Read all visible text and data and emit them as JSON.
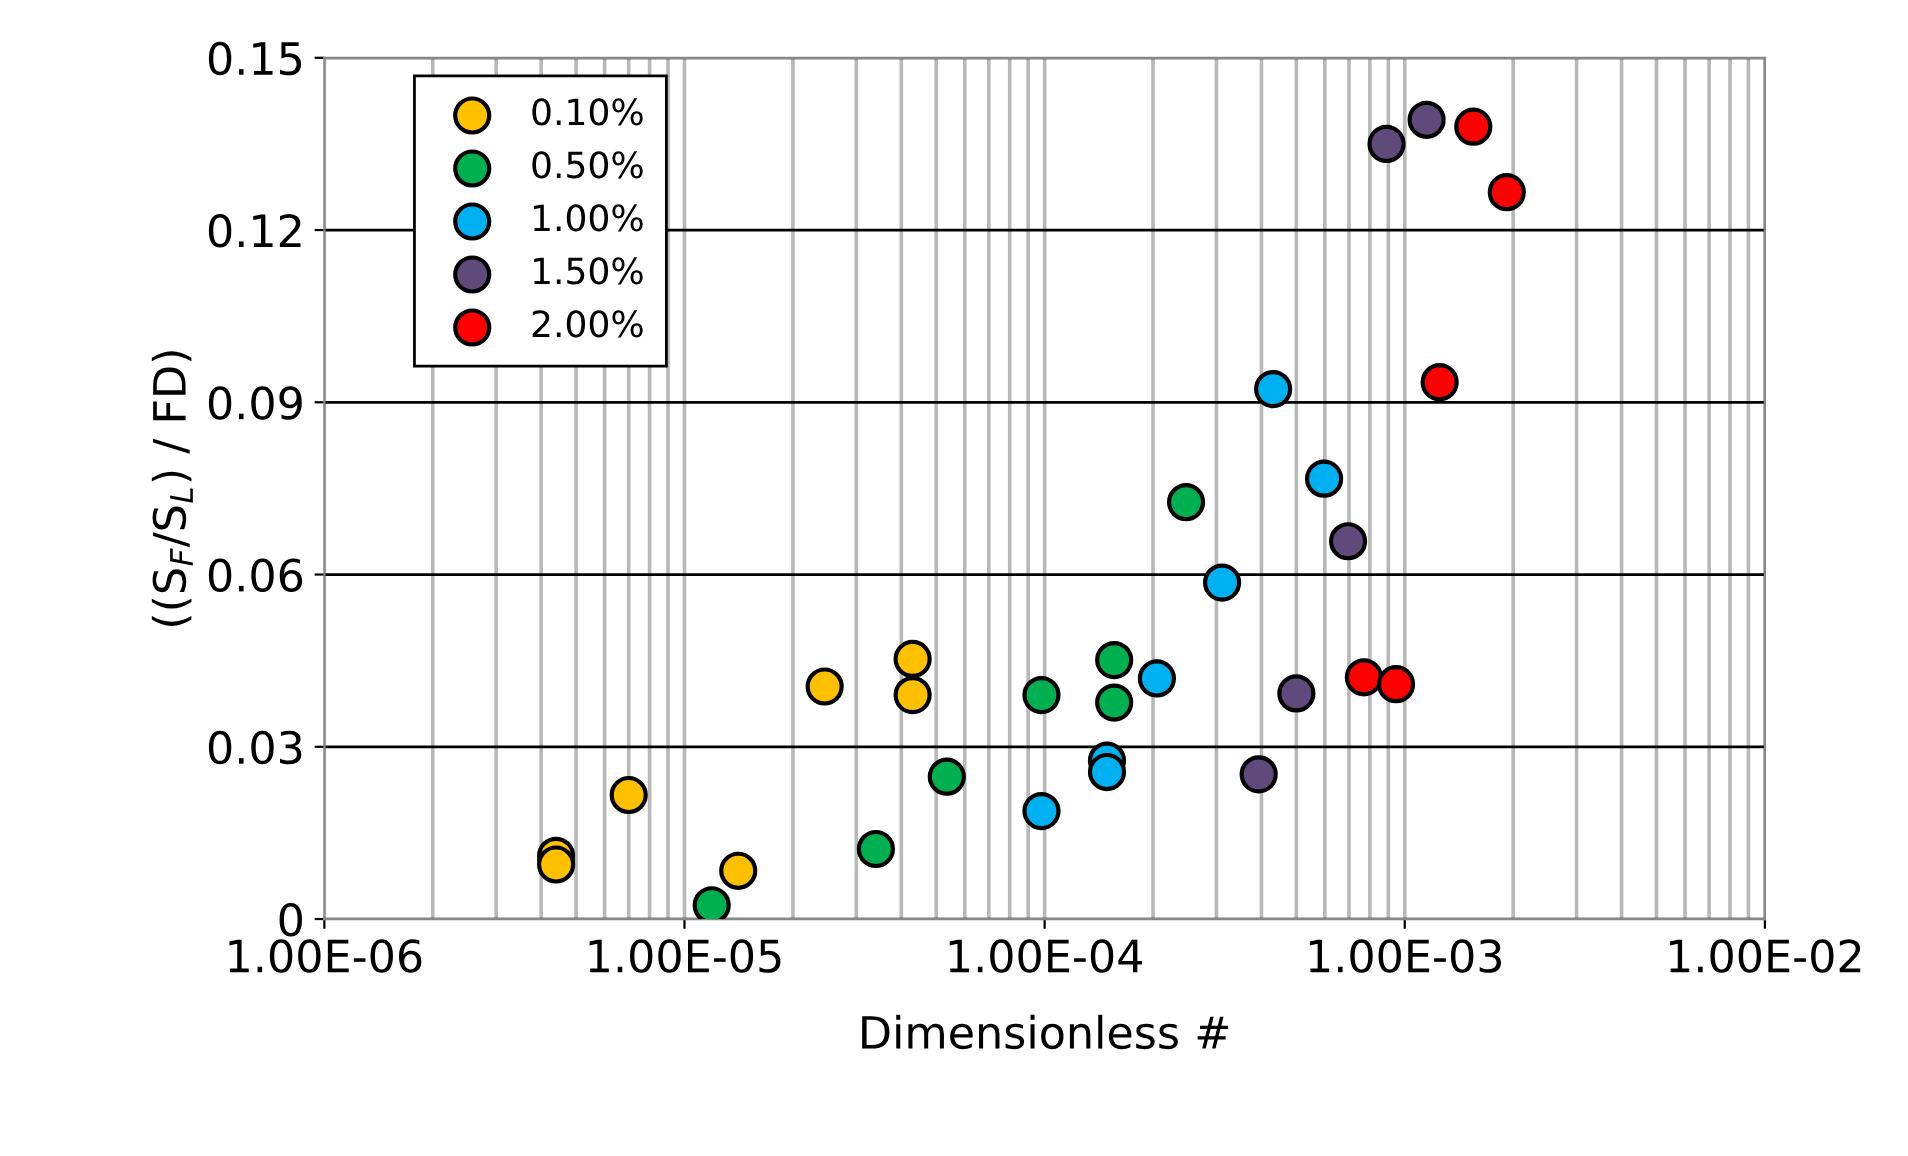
{
  "chart_data": {
    "type": "scatter",
    "xlabel": "Dimensionless #",
    "ylabel": "((S$_{F}$/S$_{L}$) / FD)",
    "log": "x",
    "xlim": [
      1e-06,
      0.01
    ],
    "ylim": [
      0,
      0.15
    ],
    "xticks": [
      {
        "value": 1e-06,
        "label": "1.00E-06"
      },
      {
        "value": 1e-05,
        "label": "1.00E-05"
      },
      {
        "value": 0.0001,
        "label": "1.00E-04"
      },
      {
        "value": 0.001,
        "label": "1.00E-03"
      },
      {
        "value": 0.01,
        "label": "1.00E-02"
      }
    ],
    "yticks": [
      0,
      0.03,
      0.06,
      0.09,
      0.12,
      0.15
    ],
    "grid": true,
    "legend": "top left",
    "marker": "circle",
    "series": [
      {
        "name": "0.10%",
        "color": "#ffc000",
        "x": [
          4.4e-06,
          4.4e-06,
          7e-06,
          1.41e-05,
          2.45e-05,
          4.3e-05,
          4.3e-05
        ],
        "values": [
          0.011,
          0.0095,
          0.0216,
          0.0084,
          0.0405,
          0.0453,
          0.039
        ]
      },
      {
        "name": "0.50%",
        "color": "#00b050",
        "x": [
          1.19e-05,
          3.4e-05,
          5.35e-05,
          9.8e-05,
          0.000156,
          0.000156,
          0.000247
        ],
        "values": [
          0.0024,
          0.0122,
          0.0248,
          0.039,
          0.0451,
          0.0377,
          0.0726
        ]
      },
      {
        "name": "1.00%",
        "color": "#00b0f0",
        "x": [
          9.8e-05,
          0.000149,
          0.000149,
          0.000205,
          0.000311,
          0.000431,
          0.000597
        ],
        "values": [
          0.0188,
          0.0276,
          0.0256,
          0.0419,
          0.0586,
          0.0923,
          0.0767
        ]
      },
      {
        "name": "1.50%",
        "color": "#604a7b",
        "x": [
          0.000393,
          0.0005,
          0.000696,
          0.00089,
          0.00115
        ],
        "values": [
          0.0252,
          0.0393,
          0.0658,
          0.135,
          0.1392
        ]
      },
      {
        "name": "2.00%",
        "color": "#ff0000",
        "x": [
          0.00077,
          0.000946,
          0.00125,
          0.00155,
          0.00192
        ],
        "values": [
          0.0421,
          0.0409,
          0.0935,
          0.138,
          0.1266
        ]
      }
    ]
  }
}
